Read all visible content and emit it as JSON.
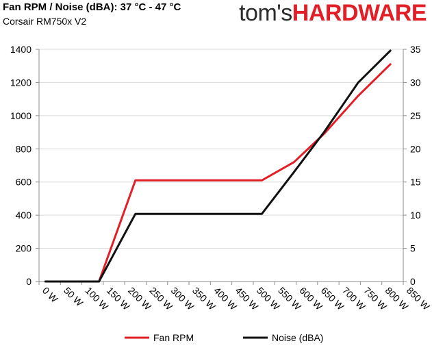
{
  "header": {
    "title": "Fan RPM / Noise (dBA): 37 °C - 47 °C",
    "subtitle": "Corsair RM750x V2",
    "logo_part1": "tom's",
    "logo_part2": "HARDWARE"
  },
  "chart_data": {
    "type": "line",
    "title": "Fan RPM / Noise (dBA): 37 °C - 47 °C",
    "subtitle": "Corsair RM750x V2",
    "x_tick_labels": [
      "0 W",
      "50 W",
      "100 W",
      "150 W",
      "200 W",
      "250 W",
      "300 W",
      "350 W",
      "400 W",
      "450 W",
      "500 W",
      "550 W",
      "600 W",
      "650 W",
      "700 W",
      "750 W",
      "800 W",
      "850 W"
    ],
    "xlim": [
      0,
      850
    ],
    "y_left": {
      "ylim": [
        0,
        1400
      ],
      "ticks": [
        0,
        200,
        400,
        600,
        800,
        1000,
        1200,
        1400
      ]
    },
    "y_right": {
      "ylim": [
        0,
        35
      ],
      "ticks": [
        0,
        5,
        10,
        15,
        20,
        25,
        30,
        35
      ]
    },
    "grid": "horizontal",
    "legend": "bottom",
    "series": [
      {
        "name": "Fan RPM",
        "axis": "left",
        "color": "#e21f26",
        "x": [
          15,
          140,
          225,
          520,
          595,
          665,
          745,
          820
        ],
        "y": [
          0,
          0,
          610,
          610,
          720,
          890,
          1120,
          1310
        ]
      },
      {
        "name": "Noise (dBA)",
        "axis": "right",
        "color": "#111111",
        "x": [
          15,
          140,
          225,
          520,
          595,
          665,
          745,
          820
        ],
        "y": [
          0,
          0,
          10.2,
          10.2,
          16.5,
          22.5,
          30.0,
          34.8
        ]
      }
    ]
  }
}
